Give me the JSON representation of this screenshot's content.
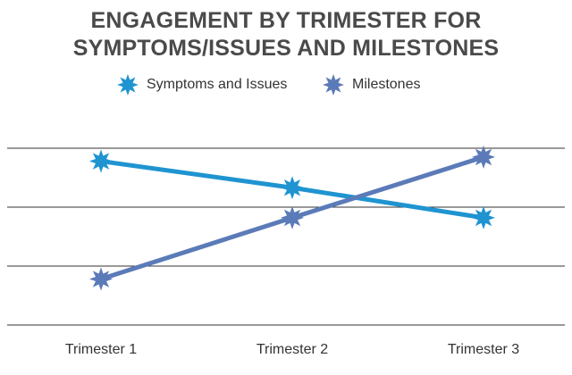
{
  "chart_data": {
    "type": "line",
    "title_lines": [
      "ENGAGEMENT BY TRIMESTER FOR",
      "SYMPTOMS/ISSUES AND MILESTONES"
    ],
    "categories": [
      "Trimester 1",
      "Trimester 2",
      "Trimester 3"
    ],
    "ylim": [
      0,
      3
    ],
    "grid": true,
    "legend_position": "top",
    "series": [
      {
        "name": "Symptoms and Issues",
        "color": "#1f94d1",
        "values": [
          2.78,
          2.33,
          1.82
        ]
      },
      {
        "name": "Milestones",
        "color": "#5b7bb8",
        "values": [
          0.78,
          1.82,
          2.85
        ]
      }
    ]
  },
  "colors": {
    "title": "#4a4a4a",
    "grid": "#333333",
    "text": "#333333"
  },
  "icons": {
    "marker": "eight-point-star-icon"
  }
}
